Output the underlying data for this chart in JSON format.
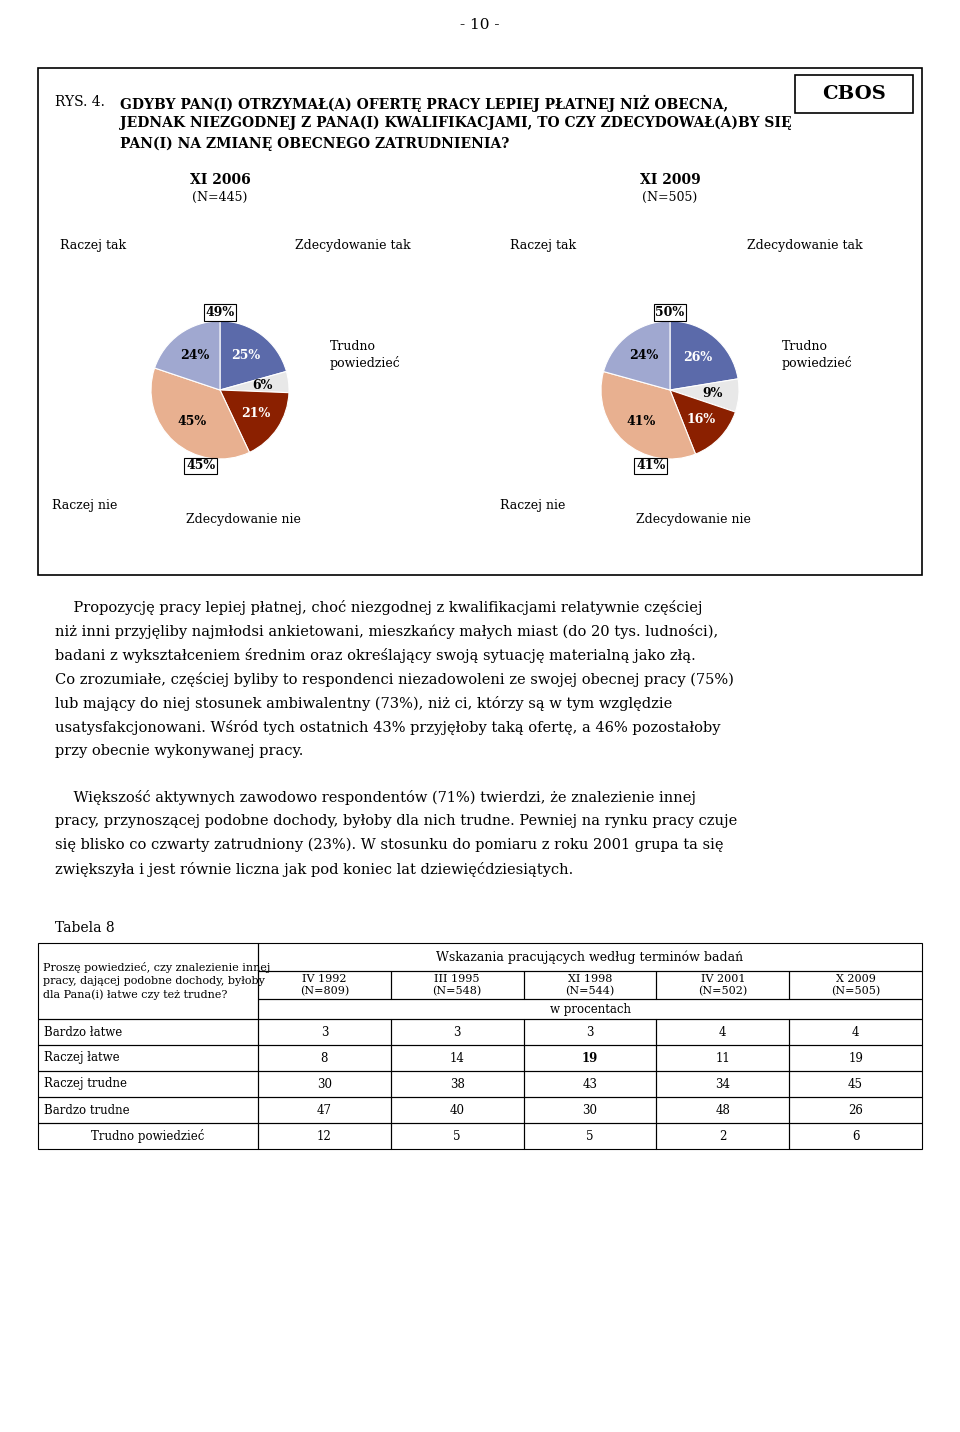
{
  "page_number": "- 10 -",
  "cbos_label": "CBOS",
  "title_prefix": "RYS. 4.",
  "title_line1": "GDYBY PAN(I) OTRZYMAŁ(A) OFERTĘ PRACY LEPIEJ PŁATNEJ NIŻ OBECNA,",
  "title_line2": "JEDNAK NIEZGODNEJ Z PANA(I) KWALIFIKACJAMI, TO CZY ZDECYDOWAŁ(A)BY SIĘ",
  "title_line3": "PAN(I) NA ZMIANĘ OBECNEGO ZATRUDNIENIA?",
  "chart1_title": "XI 2006",
  "chart1_subtitle": "(N=445)",
  "chart1_slices": [
    25,
    6,
    21,
    45,
    24
  ],
  "chart1_pct_labels": [
    "25%",
    "6%",
    "21%",
    "45%",
    "24%"
  ],
  "chart1_colors": [
    "#5b6aaa",
    "#e8e8e8",
    "#8b2000",
    "#e8b090",
    "#a0a8d0"
  ],
  "chart1_pct_top": "49%",
  "chart1_pct_bot": "45%",
  "chart2_title": "XI 2009",
  "chart2_subtitle": "(N=505)",
  "chart2_slices": [
    26,
    9,
    16,
    41,
    24
  ],
  "chart2_pct_labels": [
    "26%",
    "9%",
    "16%",
    "41%",
    "24%"
  ],
  "chart2_colors": [
    "#5b6aaa",
    "#e8e8e8",
    "#8b2000",
    "#e8b090",
    "#a0a8d0"
  ],
  "chart2_pct_top": "50%",
  "chart2_pct_bot": "41%",
  "para1_lines": [
    "    Propozycję pracy lepiej płatnej, choć niezgodnej z kwalifikacjami relatywnie częściej",
    "niż inni przyjęliby najmłodsi ankietowani, mieszkańcy małych miast (do 20 tys. ludności),",
    "badani z wykształceniem średnim oraz określający swoją sytuację materialną jako złą.",
    "Co zrozumiałe, częściej byliby to respondenci niezadowoleni ze swojej obecnej pracy (75%)",
    "lub mający do niej stosunek ambiwalentny (73%), niż ci, którzy są w tym względzie",
    "usatysfakcjonowani. Wśród tych ostatnich 43% przyjęłoby taką ofertę, a 46% pozostałoby",
    "przy obecnie wykonywanej pracy."
  ],
  "para2_lines": [
    "    Większość aktywnych zawodowo respondentów (71%) twierdzi, że znalezienie innej",
    "pracy, przynoszącej podobne dochody, byłoby dla nich trudne. Pewniej na rynku pracy czuje",
    "się blisko co czwarty zatrudniony (23%). W stosunku do pomiaru z roku 2001 grupa ta się",
    "zwiększyła i jest równie liczna jak pod koniec lat dziewięćdziesiątych."
  ],
  "tabela_label": "Tabela 8",
  "table_question": "Proszę powiedzieć, czy znalezienie innej\npracy, dającej podobne dochody, byłoby\ndla Pana(i) łatwe czy też trudne?",
  "table_header_main": "Wskazania pracujących według terminów badań",
  "table_col_headers": [
    "IV 1992\n(N=809)",
    "III 1995\n(N=548)",
    "XI 1998\n(N=544)",
    "IV 2001\n(N=502)",
    "X 2009\n(N=505)"
  ],
  "table_subheader": "w procentach",
  "table_rows": [
    {
      "label": "Bardzo łatwe",
      "values": [
        "3",
        "3",
        "3",
        "4",
        "4"
      ],
      "bold_cols": []
    },
    {
      "label": "Raczej łatwe",
      "values": [
        "8",
        "14",
        "19",
        "11",
        "19"
      ],
      "bold_cols": [
        2
      ]
    },
    {
      "label": "Raczej trudne",
      "values": [
        "30",
        "38",
        "43",
        "34",
        "45"
      ],
      "bold_cols": []
    },
    {
      "label": "Bardzo trudne",
      "values": [
        "47",
        "40",
        "30",
        "48",
        "26"
      ],
      "bold_cols": []
    },
    {
      "label": "Trudno powiedzieć",
      "values": [
        "12",
        "5",
        "5",
        "2",
        "6"
      ],
      "bold_cols": [],
      "center_label": true
    }
  ]
}
